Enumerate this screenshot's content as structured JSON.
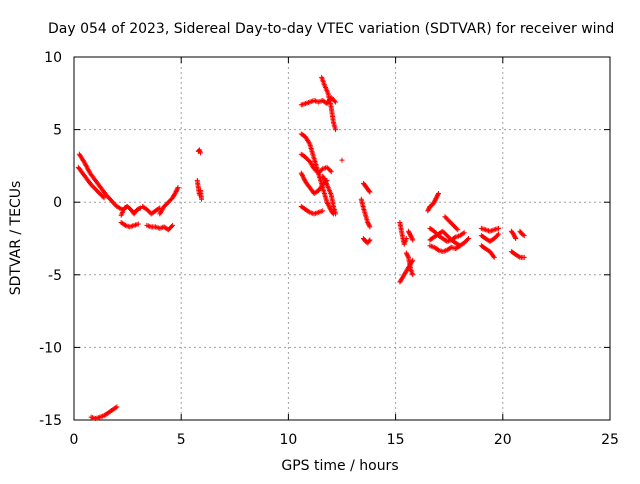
{
  "chart_data": {
    "type": "scatter",
    "title": "Day 054 of 2023, Sidereal Day-to-day VTEC variation (SDTVAR) for receiver wind",
    "xlabel": "GPS time / hours",
    "ylabel": "SDTVAR / TECUs",
    "xlim": [
      0,
      25
    ],
    "ylim": [
      -15,
      10
    ],
    "x_ticks": [
      "0",
      "5",
      "10",
      "15",
      "20",
      "25"
    ],
    "y_ticks": [
      "10",
      "5",
      "0",
      "-5",
      "-10",
      "-15"
    ],
    "x_tick_values": [
      0,
      5,
      10,
      15,
      20,
      25
    ],
    "y_tick_values": [
      10,
      5,
      0,
      -5,
      -10,
      -15
    ],
    "grid": true,
    "marker": "+",
    "series": [
      {
        "name": "SDTVAR",
        "color": "#ff0000",
        "segments": [
          {
            "x": [
              0.25,
              0.5,
              0.75,
              1.0,
              1.25,
              1.5,
              1.75,
              2.0,
              2.25
            ],
            "y": [
              3.3,
              2.7,
              2.0,
              1.5,
              1.0,
              0.5,
              0.1,
              -0.3,
              -0.5
            ]
          },
          {
            "x": [
              0.2,
              0.4,
              0.6,
              0.8,
              1.0,
              1.2,
              1.4
            ],
            "y": [
              2.4,
              2.0,
              1.6,
              1.2,
              0.9,
              0.6,
              0.3
            ]
          },
          {
            "x": [
              2.2,
              2.35,
              2.5,
              2.65,
              2.8,
              2.95,
              3.1
            ],
            "y": [
              -0.9,
              -0.4,
              -0.3,
              -0.5,
              -0.8,
              -0.5,
              -0.4
            ]
          },
          {
            "x": [
              2.2,
              2.4,
              2.6,
              2.8,
              3.0
            ],
            "y": [
              -1.4,
              -1.6,
              -1.7,
              -1.6,
              -1.5
            ]
          },
          {
            "x": [
              3.2,
              3.4,
              3.6,
              3.8,
              4.0
            ],
            "y": [
              -0.3,
              -0.5,
              -0.8,
              -0.6,
              -0.4
            ]
          },
          {
            "x": [
              3.4,
              3.6,
              3.8,
              4.0,
              4.2,
              4.4,
              4.6
            ],
            "y": [
              -1.6,
              -1.7,
              -1.7,
              -1.8,
              -1.7,
              -1.9,
              -1.6
            ]
          },
          {
            "x": [
              4.0,
              4.2,
              4.4,
              4.6,
              4.75,
              4.85
            ],
            "y": [
              -0.8,
              -0.3,
              0.0,
              0.3,
              0.7,
              1.0
            ]
          },
          {
            "x": [
              5.8,
              5.85,
              5.9
            ],
            "y": [
              3.5,
              3.6,
              3.4
            ]
          },
          {
            "x": [
              5.75,
              5.8,
              5.85,
              5.9,
              5.95
            ],
            "y": [
              1.5,
              1.0,
              0.5,
              0.8,
              0.2
            ]
          },
          {
            "x": [
              0.8,
              1.0,
              1.2,
              1.4,
              1.6,
              1.8,
              2.0
            ],
            "y": [
              -14.8,
              -14.9,
              -14.8,
              -14.7,
              -14.5,
              -14.3,
              -14.1
            ]
          },
          {
            "x": [
              10.6,
              10.8,
              11.0,
              11.2,
              11.4,
              11.6,
              11.8,
              12.0,
              12.2
            ],
            "y": [
              6.7,
              6.8,
              6.9,
              7.0,
              6.9,
              7.0,
              6.8,
              7.2,
              6.9
            ]
          },
          {
            "x": [
              11.55,
              11.7,
              11.85,
              12.0,
              12.1,
              12.2
            ],
            "y": [
              8.6,
              8.0,
              7.5,
              6.5,
              5.5,
              5.0
            ]
          },
          {
            "x": [
              10.6,
              10.8,
              11.0,
              11.2,
              11.4,
              11.6,
              11.8,
              12.0,
              12.1
            ],
            "y": [
              4.7,
              4.5,
              4.0,
              3.0,
              2.0,
              1.0,
              0.0,
              -0.6,
              -0.8
            ]
          },
          {
            "x": [
              10.6,
              10.8,
              11.0,
              11.2,
              11.4,
              11.6,
              11.8,
              12.0
            ],
            "y": [
              3.3,
              3.1,
              2.8,
              2.3,
              2.0,
              2.3,
              2.4,
              2.1
            ]
          },
          {
            "x": [
              10.6,
              10.8,
              11.0,
              11.2,
              11.4,
              11.6,
              11.8
            ],
            "y": [
              2.0,
              1.4,
              1.0,
              0.6,
              0.8,
              1.2,
              1.5
            ]
          },
          {
            "x": [
              10.6,
              10.8,
              11.0,
              11.2,
              11.4,
              11.6
            ],
            "y": [
              -0.3,
              -0.5,
              -0.7,
              -0.8,
              -0.7,
              -0.6
            ]
          },
          {
            "x": [
              11.6,
              11.8,
              12.0,
              12.1,
              12.2
            ],
            "y": [
              1.8,
              1.2,
              0.5,
              -0.3,
              -0.8
            ]
          },
          {
            "x": [
              12.5
            ],
            "y": [
              2.9
            ]
          },
          {
            "x": [
              13.5,
              13.6,
              13.7,
              13.8
            ],
            "y": [
              1.3,
              1.1,
              0.9,
              0.7
            ]
          },
          {
            "x": [
              13.4,
              13.5,
              13.6,
              13.7,
              13.8
            ],
            "y": [
              0.2,
              -0.4,
              -0.9,
              -1.4,
              -1.7
            ]
          },
          {
            "x": [
              13.5,
              13.6,
              13.7,
              13.8
            ],
            "y": [
              -2.5,
              -2.7,
              -2.8,
              -2.6
            ]
          },
          {
            "x": [
              15.2,
              15.3,
              15.4,
              15.5
            ],
            "y": [
              -1.4,
              -2.2,
              -2.9,
              -2.5
            ]
          },
          {
            "x": [
              15.2,
              15.4,
              15.6,
              15.8
            ],
            "y": [
              -5.5,
              -5.0,
              -4.5,
              -4.0
            ]
          },
          {
            "x": [
              15.5,
              15.6,
              15.7,
              15.8
            ],
            "y": [
              -3.5,
              -3.8,
              -4.6,
              -5.0
            ]
          },
          {
            "x": [
              15.6,
              15.7,
              15.8
            ],
            "y": [
              -2.0,
              -2.3,
              -2.6
            ]
          },
          {
            "x": [
              16.5,
              16.6,
              16.7,
              16.8,
              16.9,
              17.0
            ],
            "y": [
              -0.6,
              -0.3,
              -0.2,
              0.0,
              0.3,
              0.6
            ]
          },
          {
            "x": [
              16.6,
              16.8,
              17.0,
              17.2,
              17.4,
              17.6,
              17.8,
              18.0,
              18.2
            ],
            "y": [
              -1.8,
              -2.0,
              -2.3,
              -2.5,
              -2.7,
              -2.6,
              -2.4,
              -2.3,
              -2.1
            ]
          },
          {
            "x": [
              16.6,
              16.8,
              17.0,
              17.2,
              17.4,
              17.6,
              17.8,
              18.0,
              18.2,
              18.4
            ],
            "y": [
              -2.6,
              -2.4,
              -2.2,
              -2.0,
              -2.3,
              -2.6,
              -2.8,
              -3.0,
              -2.8,
              -2.5
            ]
          },
          {
            "x": [
              16.6,
              16.8,
              17.0,
              17.2,
              17.4,
              17.6,
              17.8,
              18.0
            ],
            "y": [
              -3.0,
              -3.1,
              -3.3,
              -3.4,
              -3.3,
              -3.1,
              -3.2,
              -3.0
            ]
          },
          {
            "x": [
              17.3,
              17.5,
              17.7,
              17.9
            ],
            "y": [
              -1.0,
              -1.3,
              -1.6,
              -1.9
            ]
          },
          {
            "x": [
              19.0,
              19.2,
              19.4,
              19.6,
              19.8
            ],
            "y": [
              -1.8,
              -1.9,
              -2.0,
              -1.9,
              -1.8
            ]
          },
          {
            "x": [
              19.0,
              19.2,
              19.4,
              19.6,
              19.8
            ],
            "y": [
              -2.3,
              -2.5,
              -2.7,
              -2.5,
              -2.2
            ]
          },
          {
            "x": [
              19.0,
              19.2,
              19.4,
              19.6
            ],
            "y": [
              -3.0,
              -3.2,
              -3.4,
              -3.8
            ]
          },
          {
            "x": [
              20.4,
              20.5,
              20.6
            ],
            "y": [
              -2.0,
              -2.2,
              -2.5
            ]
          },
          {
            "x": [
              20.4,
              20.6,
              20.8,
              21.0
            ],
            "y": [
              -3.4,
              -3.6,
              -3.8,
              -3.8
            ]
          },
          {
            "x": [
              20.8,
              20.9,
              21.0
            ],
            "y": [
              -2.0,
              -2.2,
              -2.3
            ]
          }
        ]
      }
    ]
  }
}
